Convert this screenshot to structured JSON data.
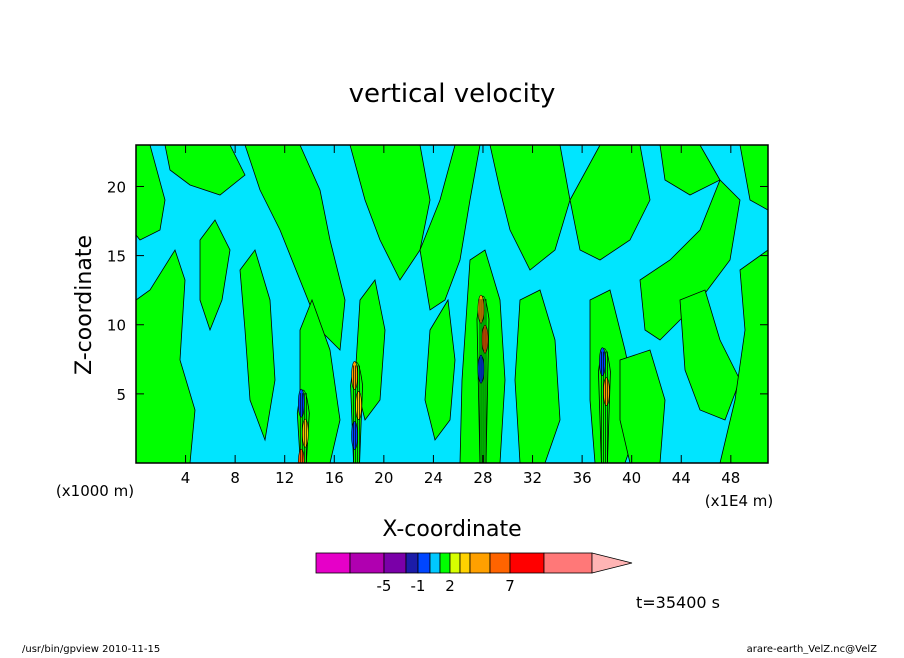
{
  "chart_data": {
    "type": "heatmap",
    "title": "vertical velocity",
    "xlabel": "X-coordinate",
    "ylabel": "Z-coordinate",
    "x_unit_label": "(x1000 m)",
    "x_unit_label_right": "(x1E4 m)",
    "xlim": [
      0,
      51
    ],
    "ylim": [
      0,
      23
    ],
    "x_ticks": [
      4,
      8,
      12,
      16,
      20,
      24,
      28,
      32,
      36,
      40,
      44,
      48
    ],
    "y_ticks": [
      5,
      10,
      15,
      20
    ],
    "colors": {
      "background": "#00e5ff",
      "positive_band": "#00ff00",
      "contour_line": "#000000"
    },
    "colorbar": {
      "labels": [
        {
          "text": "-5",
          "index": 2
        },
        {
          "text": "-1",
          "index": 4
        },
        {
          "text": "2",
          "index": 7
        },
        {
          "text": "7",
          "index": 11
        }
      ],
      "swatches": [
        "#e600c8",
        "#b000b0",
        "#7a00a8",
        "#1c1ca8",
        "#0046ff",
        "#00c8ff",
        "#00ff00",
        "#d6ff00",
        "#ffd200",
        "#ffa000",
        "#ff6400",
        "#ff0000",
        "#ff7878"
      ],
      "arrow_color": "#ffb4b4"
    },
    "time_label": "t=35400 s",
    "plumes": [
      {
        "x": 13.5,
        "top": 6.5,
        "colors": [
          "#0046ff",
          "#ffd200",
          "#ff6400"
        ]
      },
      {
        "x": 17.8,
        "top": 8.5,
        "colors": [
          "#ffa000",
          "#ffd200",
          "#0046ff"
        ]
      },
      {
        "x": 28.0,
        "top": 13.3,
        "colors": [
          "#ffa000",
          "#ff6400",
          "#0046ff"
        ]
      },
      {
        "x": 37.8,
        "top": 9.5,
        "colors": [
          "#0046ff",
          "#ffa000"
        ]
      }
    ]
  },
  "footer": {
    "left": "/usr/bin/gpview   2010-11-15",
    "right": "arare-earth_VelZ.nc@VelZ"
  }
}
